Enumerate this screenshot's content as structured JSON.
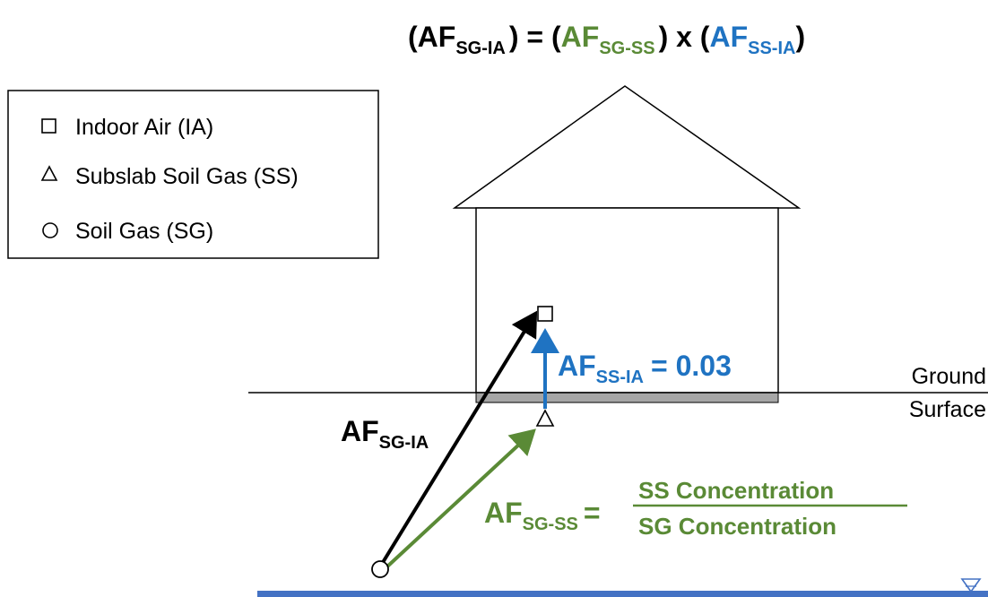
{
  "equation": {
    "open1": "(",
    "lhs_base": "AF",
    "lhs_sub": "SG-IA",
    "close1": ") = (",
    "term1_base": "AF",
    "term1_sub": "SG-SS",
    "mid": ") x (",
    "term2_base": "AF",
    "term2_sub": "SS-IA",
    "close2": ")"
  },
  "legend": {
    "items": [
      {
        "symbol": "square-icon",
        "label": "Indoor Air (IA)"
      },
      {
        "symbol": "triangle-icon",
        "label": "Subslab Soil Gas (SS)"
      },
      {
        "symbol": "circle-icon",
        "label": "Soil Gas (SG)"
      }
    ]
  },
  "labels": {
    "af_ss_ia_base": "AF",
    "af_ss_ia_sub": "SS-IA",
    "af_ss_ia_value": "= 0.03",
    "af_sg_ia_base": "AF",
    "af_sg_ia_sub": "SG-IA",
    "af_sg_ss_base": "AF",
    "af_sg_ss_sub": "SG-SS",
    "af_sg_ss_eq": "=",
    "numerator": "SS Concentration",
    "denominator": "SG Concentration",
    "ground_line1": "Ground",
    "ground_line2": "Surface"
  },
  "colors": {
    "green": "#5a8a36",
    "blue": "#1f73c2",
    "black": "#000000",
    "slab": "#a6a6a6",
    "water": "#4472c4"
  }
}
